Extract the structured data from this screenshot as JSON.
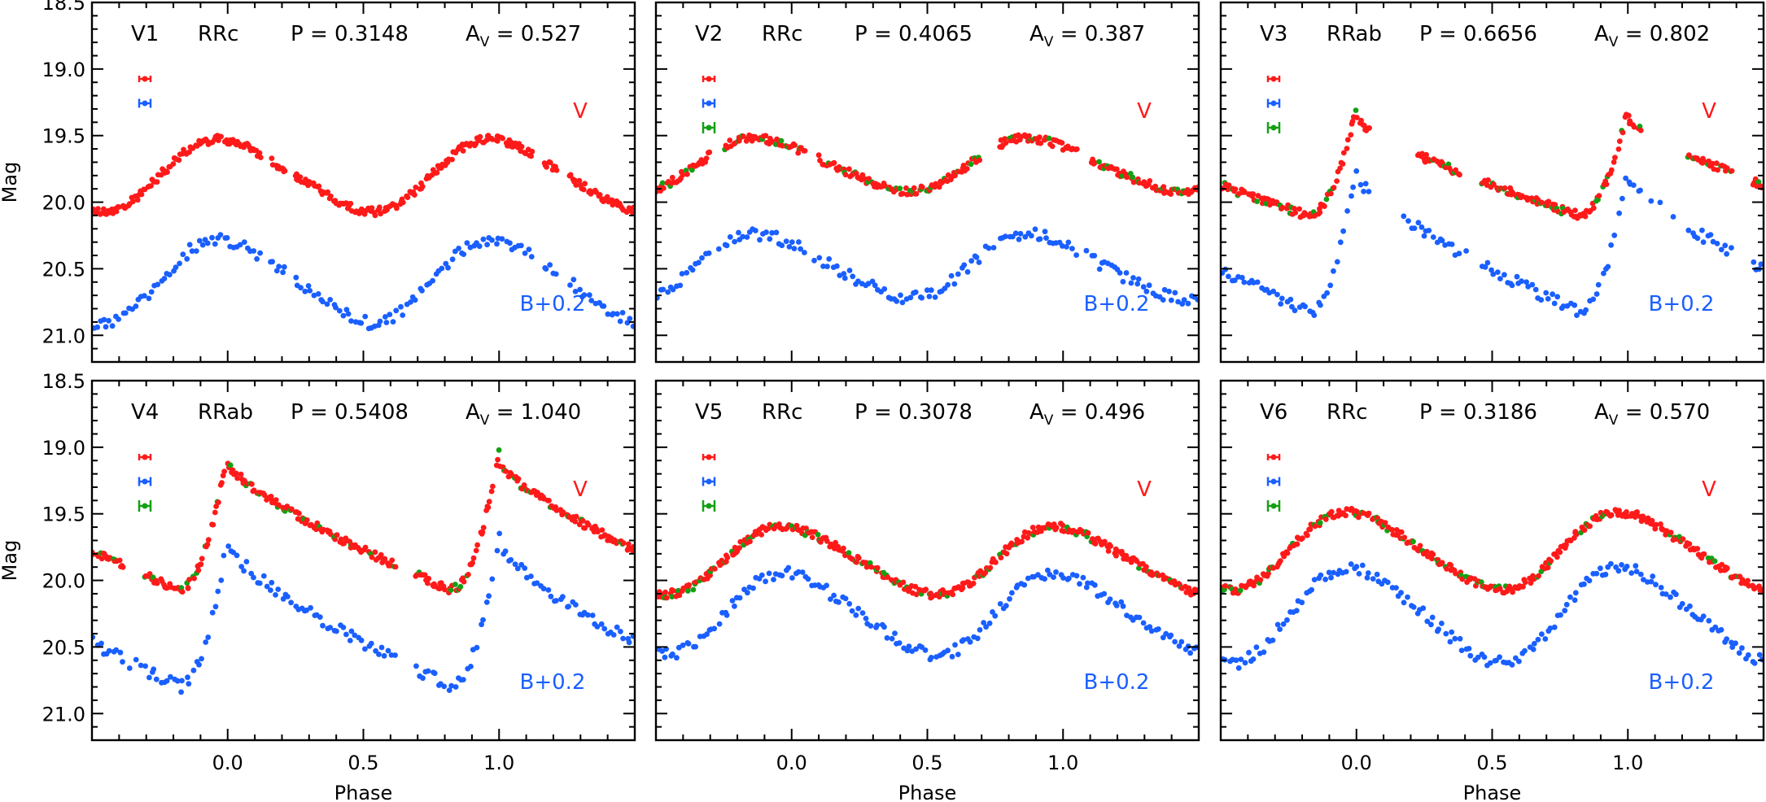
{
  "colors": {
    "V": "#ff1a1a",
    "B": "#1a5fff",
    "G": "#14a014"
  },
  "chart_data": {
    "type": "scatter",
    "xlabel": "Phase",
    "ylabel": "Mag",
    "xlim": [
      -0.5,
      1.5
    ],
    "ylim": [
      21.2,
      18.5
    ],
    "y_inverted": true,
    "xticks": [
      "0.0",
      "0.5",
      "1.0"
    ],
    "yticks": [
      "18.5",
      "19.0",
      "19.5",
      "20.0",
      "20.5",
      "21.0"
    ],
    "band_labels": {
      "V": "V",
      "B": "B+0.2"
    },
    "panels": [
      {
        "star": "V1",
        "type": "RRc",
        "period_label": "P = 0.3148",
        "amp_prefix": "A",
        "amp_sub": "V",
        "amp_value": " = 0.527",
        "model": "rrc",
        "v_mean": 19.8,
        "v_amp": 0.527,
        "b_amp": 0.72,
        "b_offset": 0.75,
        "peak": 0.0,
        "has_green": false,
        "missing": [
          [
            0.12,
            0.16
          ],
          [
            0.22,
            0.25
          ]
        ]
      },
      {
        "star": "V2",
        "type": "RRc",
        "period_label": "P = 0.4065",
        "amp_prefix": "A",
        "amp_sub": "V",
        "amp_value": " = 0.387",
        "model": "rrc",
        "v_mean": 19.72,
        "v_amp": 0.387,
        "b_amp": 0.55,
        "b_offset": 0.72,
        "peak": -0.1,
        "has_green": true,
        "missing": [
          [
            -0.2,
            -0.15
          ],
          [
            0.15,
            0.2
          ]
        ]
      },
      {
        "star": "V3",
        "type": "RRab",
        "period_label": "P = 0.6656",
        "amp_prefix": "A",
        "amp_sub": "V",
        "amp_value": " = 0.802",
        "model": "rrab",
        "v_mean": 19.7,
        "v_amp": 0.802,
        "b_amp": 1.3,
        "b_offset": 0.42,
        "peak": 0.0,
        "has_green": true,
        "missing": [
          [
            0.05,
            0.22
          ],
          [
            0.38,
            0.45
          ]
        ]
      },
      {
        "star": "V4",
        "type": "RRab",
        "period_label": "P = 0.5408",
        "amp_prefix": "A",
        "amp_sub": "V",
        "amp_value": " = 1.040",
        "model": "rrab",
        "v_mean": 19.55,
        "v_amp": 1.04,
        "b_amp": 1.35,
        "b_offset": 0.62,
        "peak": 0.0,
        "has_green": true,
        "missing": [
          [
            0.62,
            0.68
          ]
        ]
      },
      {
        "star": "V5",
        "type": "RRc",
        "period_label": "P = 0.3078",
        "amp_prefix": "A",
        "amp_sub": "V",
        "amp_value": " = 0.496",
        "model": "rrc",
        "v_mean": 19.85,
        "v_amp": 0.496,
        "b_amp": 0.7,
        "b_offset": 0.35,
        "peak": 0.0,
        "has_green": true,
        "missing": []
      },
      {
        "star": "V6",
        "type": "RRc",
        "period_label": "P = 0.3186",
        "amp_prefix": "A",
        "amp_sub": "V",
        "amp_value": " = 0.570",
        "model": "rrc",
        "v_mean": 19.78,
        "v_amp": 0.57,
        "b_amp": 0.82,
        "b_offset": 0.42,
        "peak": 0.0,
        "has_green": true,
        "missing": []
      }
    ]
  }
}
